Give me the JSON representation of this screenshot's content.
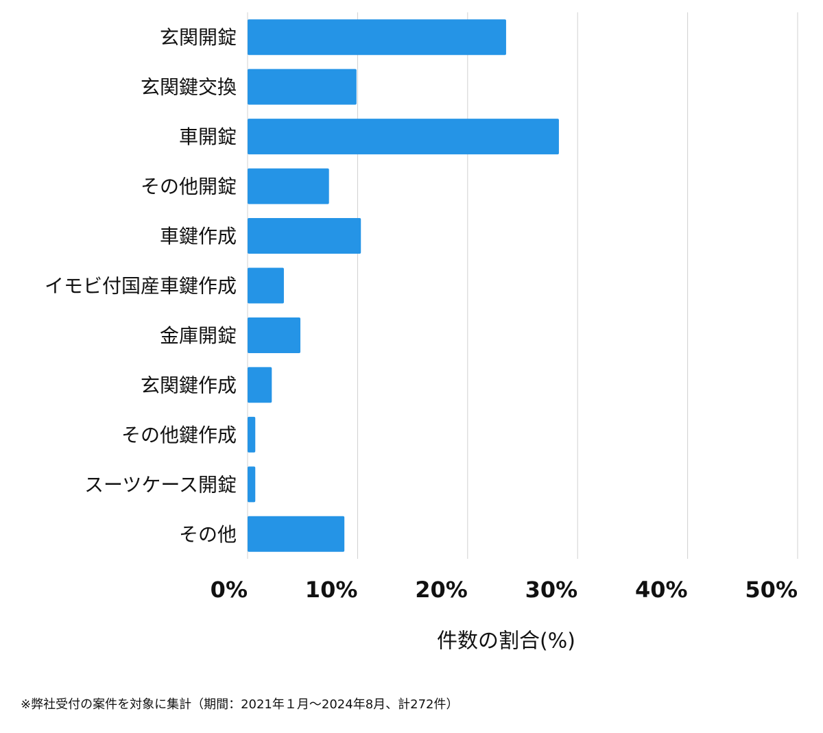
{
  "chart_data": {
    "type": "bar",
    "orientation": "horizontal",
    "x_label": "件数の割合(%)",
    "footnote": "※弊社受付の案件を対象に集計（期間：2021年１月〜2024年8月、計272件）",
    "categories": [
      "玄関開錠",
      "玄関鍵交換",
      "車開錠",
      "その他開錠",
      "車鍵作成",
      "イモビ付国産車鍵作成",
      "金庫開錠",
      "玄関鍵作成",
      "その他鍵作成",
      "スーツケース開錠",
      "その他"
    ],
    "values": [
      23.5,
      9.9,
      28.3,
      7.4,
      10.3,
      3.3,
      4.8,
      2.2,
      0.7,
      0.7,
      8.8
    ],
    "color": "#2594e6",
    "xlim": [
      0,
      50
    ],
    "xticks": [
      {
        "value": 0,
        "label": "0%"
      },
      {
        "value": 10,
        "label": "10%"
      },
      {
        "value": 20,
        "label": "20%"
      },
      {
        "value": 30,
        "label": "30%"
      },
      {
        "value": 40,
        "label": "40%"
      },
      {
        "value": 50,
        "label": "50%"
      }
    ],
    "grid": true
  }
}
